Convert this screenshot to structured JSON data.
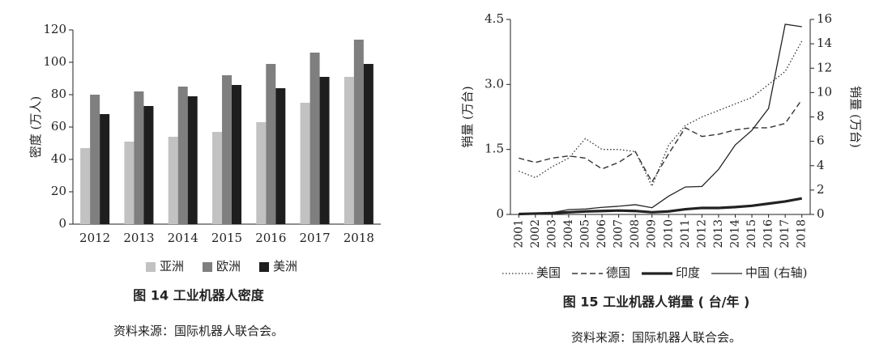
{
  "chart_data": [
    {
      "type": "bar",
      "title": "图 14 工业机器人密度",
      "source": "资料来源：国际机器人联合会。",
      "ylabel": "密度 (万人)",
      "categories": [
        "2012",
        "2013",
        "2014",
        "2015",
        "2016",
        "2017",
        "2018"
      ],
      "series": [
        {
          "name": "亚洲",
          "color": "#c2c2c2",
          "values": [
            47,
            51,
            54,
            57,
            63,
            75,
            91
          ]
        },
        {
          "name": "欧洲",
          "color": "#7f7f7f",
          "values": [
            80,
            82,
            85,
            92,
            99,
            106,
            114
          ]
        },
        {
          "name": "美洲",
          "color": "#1e1e1e",
          "values": [
            68,
            73,
            79,
            86,
            84,
            91,
            99
          ]
        }
      ],
      "ylim": [
        0,
        120
      ],
      "yticks": [
        0,
        20,
        40,
        60,
        80,
        100,
        120
      ],
      "legend": "bottom"
    },
    {
      "type": "line",
      "title": "图 15 工业机器人销量 ( 台/年 )",
      "source": "资料来源：国际机器人联合会。",
      "ylabel": "销量 (万台)",
      "y2label": "销量 (万台)",
      "categories": [
        "2001",
        "2002",
        "2003",
        "2004",
        "2005",
        "2006",
        "2007",
        "2008",
        "2009",
        "2010",
        "2011",
        "2012",
        "2013",
        "2014",
        "2015",
        "2016",
        "2017",
        "2018"
      ],
      "series": [
        {
          "name": "美国",
          "color": "#333333",
          "style": "dotted",
          "values": [
            1.0,
            0.85,
            1.1,
            1.3,
            1.75,
            1.5,
            1.5,
            1.45,
            0.65,
            1.6,
            2.05,
            2.25,
            2.4,
            2.55,
            2.7,
            3.0,
            3.3,
            4.0
          ]
        },
        {
          "name": "德国",
          "color": "#333333",
          "style": "dashed",
          "values": [
            1.3,
            1.2,
            1.3,
            1.35,
            1.3,
            1.05,
            1.2,
            1.45,
            0.75,
            1.4,
            2.0,
            1.8,
            1.85,
            1.95,
            2.0,
            2.0,
            2.1,
            2.65
          ]
        },
        {
          "name": "印度",
          "color": "#222222",
          "style": "bold",
          "values": [
            0.01,
            0.02,
            0.03,
            0.05,
            0.07,
            0.08,
            0.09,
            0.08,
            0.05,
            0.07,
            0.12,
            0.15,
            0.15,
            0.17,
            0.2,
            0.25,
            0.3,
            0.37
          ]
        },
        {
          "name": "中国 (右轴)",
          "color": "#222222",
          "style": "solid",
          "axis": "y2",
          "values": [
            0.07,
            0.1,
            0.15,
            0.4,
            0.45,
            0.58,
            0.67,
            0.8,
            0.55,
            1.5,
            2.25,
            2.3,
            3.7,
            5.7,
            6.9,
            8.7,
            15.6,
            15.4
          ]
        }
      ],
      "ylim": [
        0,
        4.5
      ],
      "yticks": [
        0,
        1.5,
        {
          "value": 3,
          "label": "3.0"
        },
        4.5
      ],
      "y2lim": [
        0,
        16
      ],
      "y2ticks": [
        0,
        2,
        4,
        6,
        8,
        10,
        12,
        14,
        16
      ],
      "legend": "bottom"
    }
  ]
}
